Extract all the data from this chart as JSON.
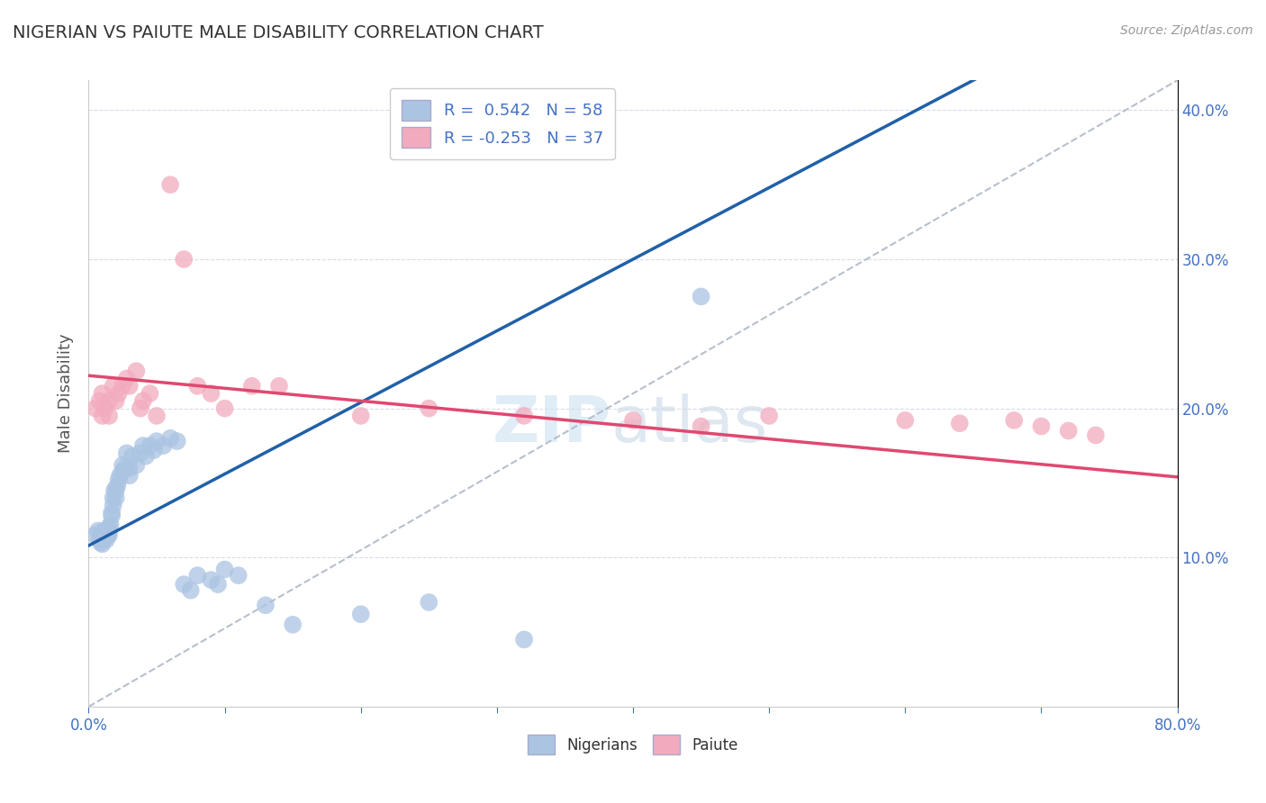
{
  "title": "NIGERIAN VS PAIUTE MALE DISABILITY CORRELATION CHART",
  "source": "Source: ZipAtlas.com",
  "ylabel": "Male Disability",
  "xlim": [
    0.0,
    0.8
  ],
  "ylim": [
    0.0,
    0.42
  ],
  "nigerian_color": "#aac4e2",
  "paiute_color": "#f2abbe",
  "nigerian_line_color": "#2060a8",
  "paiute_line_color": "#e04870",
  "diagonal_color": "#b0b8c8",
  "watermark_zip": "ZIP",
  "watermark_atlas": "atlas",
  "legend_label_nigerian": "R =  0.542   N = 58",
  "legend_label_paiute": "R = -0.253   N = 37",
  "bottom_label_nigerian": "Nigerians",
  "bottom_label_paiute": "Paiute",
  "nigerian_x": [
    0.005,
    0.007,
    0.008,
    0.009,
    0.01,
    0.01,
    0.01,
    0.01,
    0.01,
    0.012,
    0.013,
    0.013,
    0.014,
    0.014,
    0.015,
    0.015,
    0.015,
    0.016,
    0.017,
    0.017,
    0.018,
    0.018,
    0.019,
    0.02,
    0.02,
    0.021,
    0.022,
    0.023,
    0.025,
    0.025,
    0.027,
    0.028,
    0.03,
    0.03,
    0.032,
    0.035,
    0.038,
    0.04,
    0.042,
    0.045,
    0.048,
    0.05,
    0.055,
    0.06,
    0.065,
    0.07,
    0.075,
    0.08,
    0.09,
    0.095,
    0.1,
    0.11,
    0.13,
    0.15,
    0.2,
    0.25,
    0.32,
    0.45
  ],
  "nigerian_y": [
    0.115,
    0.118,
    0.112,
    0.11,
    0.113,
    0.115,
    0.117,
    0.112,
    0.109,
    0.118,
    0.118,
    0.112,
    0.115,
    0.117,
    0.12,
    0.118,
    0.115,
    0.122,
    0.128,
    0.13,
    0.14,
    0.135,
    0.145,
    0.14,
    0.145,
    0.148,
    0.152,
    0.155,
    0.158,
    0.162,
    0.16,
    0.17,
    0.155,
    0.16,
    0.168,
    0.162,
    0.17,
    0.175,
    0.168,
    0.175,
    0.172,
    0.178,
    0.175,
    0.18,
    0.178,
    0.082,
    0.078,
    0.088,
    0.085,
    0.082,
    0.092,
    0.088,
    0.068,
    0.055,
    0.062,
    0.07,
    0.045,
    0.275
  ],
  "paiute_x": [
    0.005,
    0.008,
    0.01,
    0.01,
    0.012,
    0.015,
    0.015,
    0.018,
    0.02,
    0.022,
    0.025,
    0.028,
    0.03,
    0.035,
    0.038,
    0.04,
    0.045,
    0.05,
    0.06,
    0.07,
    0.08,
    0.09,
    0.1,
    0.12,
    0.14,
    0.2,
    0.25,
    0.32,
    0.4,
    0.45,
    0.5,
    0.6,
    0.64,
    0.68,
    0.7,
    0.72,
    0.74
  ],
  "paiute_y": [
    0.2,
    0.205,
    0.21,
    0.195,
    0.2,
    0.205,
    0.195,
    0.215,
    0.205,
    0.21,
    0.215,
    0.22,
    0.215,
    0.225,
    0.2,
    0.205,
    0.21,
    0.195,
    0.35,
    0.3,
    0.215,
    0.21,
    0.2,
    0.215,
    0.215,
    0.195,
    0.2,
    0.195,
    0.192,
    0.188,
    0.195,
    0.192,
    0.19,
    0.192,
    0.188,
    0.185,
    0.182
  ]
}
